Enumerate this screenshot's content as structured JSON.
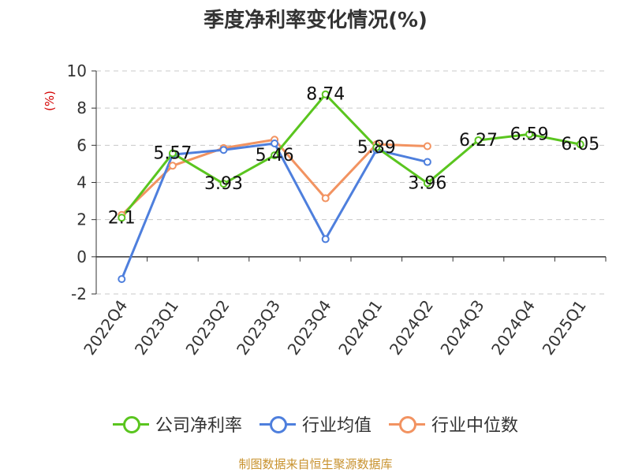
{
  "chart_data": {
    "type": "line",
    "title": "季度净利率变化情况(%)",
    "ylabel": "(%)",
    "ylim": [
      -2,
      10
    ],
    "yticks": [
      -2,
      0,
      2,
      4,
      6,
      8,
      10
    ],
    "grid": true,
    "legend_position": "bottom",
    "categories": [
      "2022Q4",
      "2023Q1",
      "2023Q2",
      "2023Q3",
      "2023Q4",
      "2024Q1",
      "2024Q2",
      "2024Q3",
      "2024Q4",
      "2025Q1"
    ],
    "series": [
      {
        "name": "公司净利率",
        "color": "#5ac51f",
        "values": [
          2.1,
          5.57,
          3.93,
          5.46,
          8.74,
          5.89,
          3.96,
          6.27,
          6.59,
          6.05
        ],
        "labels": [
          "2.1",
          "5.57",
          "3.93",
          "5.46",
          "8.74",
          "5.89",
          "3.96",
          "6.27",
          "6.59",
          "6.05"
        ]
      },
      {
        "name": "行业均值",
        "color": "#4e7fdd",
        "values": [
          -1.2,
          5.5,
          5.75,
          6.1,
          0.95,
          5.75,
          5.1,
          null,
          null,
          null
        ]
      },
      {
        "name": "行业中位数",
        "color": "#f29361",
        "values": [
          2.25,
          4.9,
          5.85,
          6.3,
          3.15,
          6.05,
          5.95,
          null,
          null,
          null
        ]
      }
    ]
  },
  "footer": "制图数据来自恒生聚源数据库"
}
